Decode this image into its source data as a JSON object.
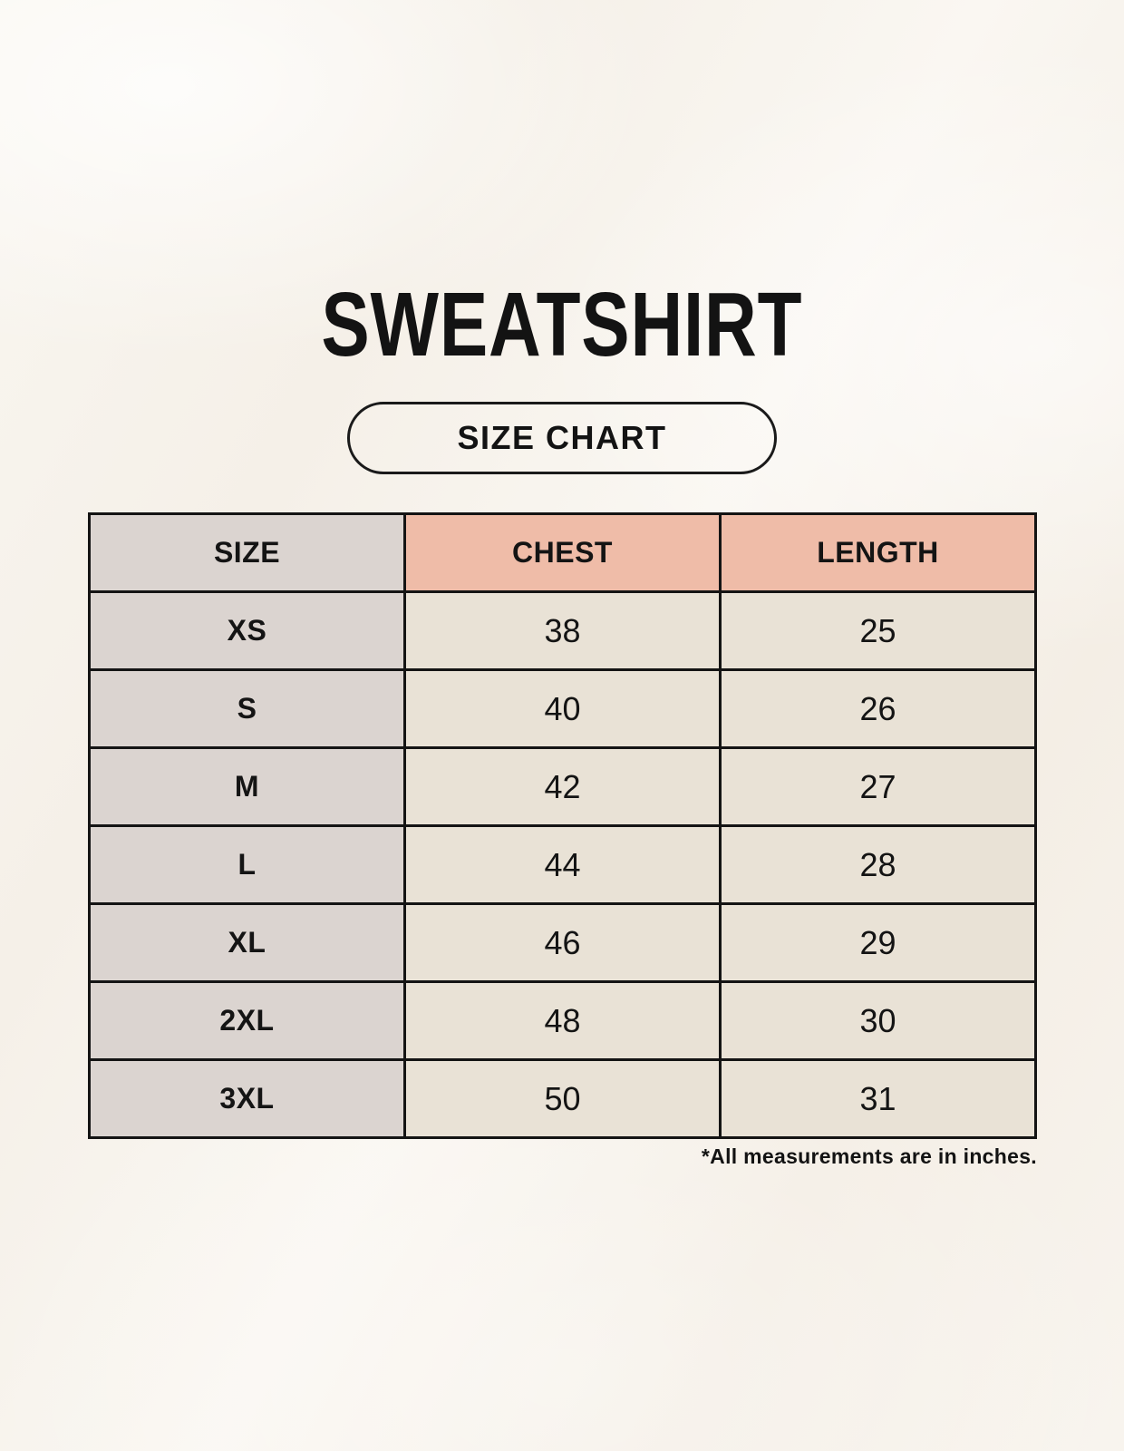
{
  "title": "SWEATSHIRT",
  "badge": {
    "label": "SIZE CHART"
  },
  "table": {
    "headers": [
      "SIZE",
      "CHEST",
      "LENGTH"
    ],
    "rows": [
      {
        "size": "XS",
        "chest": "38",
        "length": "25"
      },
      {
        "size": "S",
        "chest": "40",
        "length": "26"
      },
      {
        "size": "M",
        "chest": "42",
        "length": "27"
      },
      {
        "size": "L",
        "chest": "44",
        "length": "28"
      },
      {
        "size": "XL",
        "chest": "46",
        "length": "29"
      },
      {
        "size": "2XL",
        "chest": "48",
        "length": "30"
      },
      {
        "size": "3XL",
        "chest": "50",
        "length": "31"
      }
    ],
    "footnote": "*All measurements are in inches."
  },
  "colors": {
    "page_bg": "#f7f3ec",
    "table_border": "#141414",
    "header_size_bg": "#dbd4d0",
    "header_measure_bg": "#efbca8",
    "size_col_bg": "#dbd4d0",
    "data_cell_bg": "#e9e2d6",
    "text": "#141414"
  }
}
